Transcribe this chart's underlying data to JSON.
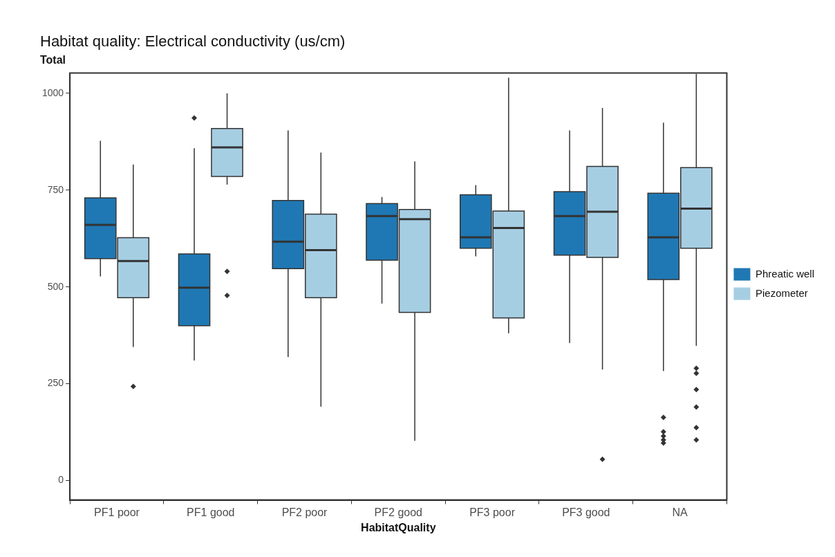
{
  "chart_data": {
    "type": "box",
    "title": "Habitat quality: Electrical conductivity (us/cm)",
    "subtitle": "Total",
    "xlabel": "HabitatQuality",
    "categories": [
      "PF1 poor",
      "PF1 good",
      "PF2 poor",
      "PF2 good",
      "PF3 poor",
      "PF3 good",
      "NA"
    ],
    "ylim": [
      -50,
      1052
    ],
    "yticks": [
      0,
      250,
      500,
      750,
      1000
    ],
    "grid": false,
    "legend": "right",
    "series": [
      {
        "name": "Phreatic well",
        "color": "#1f78b4",
        "boxes": [
          {
            "low": 527,
            "q1": 573,
            "median": 660,
            "q3": 730,
            "high": 877
          },
          {
            "low": 310,
            "q1": 400,
            "median": 498,
            "q3": 585,
            "high": 858,
            "outliers": [
              936
            ]
          },
          {
            "low": 319,
            "q1": 547,
            "median": 617,
            "q3": 723,
            "high": 904
          },
          {
            "low": 457,
            "q1": 569,
            "median": 683,
            "q3": 715,
            "high": 732
          },
          {
            "low": 579,
            "q1": 600,
            "median": 628,
            "q3": 738,
            "high": 763
          },
          {
            "low": 355,
            "q1": 582,
            "median": 683,
            "q3": 746,
            "high": 904
          },
          {
            "low": 283,
            "q1": 519,
            "median": 628,
            "q3": 742,
            "high": 924,
            "outliers": [
              163,
              126,
              115,
              105,
              97
            ]
          }
        ]
      },
      {
        "name": "Piezometer",
        "color": "#a6cee3",
        "boxes": [
          {
            "low": 345,
            "q1": 472,
            "median": 567,
            "q3": 627,
            "high": 816,
            "outliers": [
              243
            ]
          },
          {
            "low": 764,
            "q1": 785,
            "median": 860,
            "q3": 909,
            "high": 1000,
            "outliers": [
              540,
              478
            ]
          },
          {
            "low": 191,
            "q1": 472,
            "median": 595,
            "q3": 688,
            "high": 847
          },
          {
            "low": 103,
            "q1": 434,
            "median": 675,
            "q3": 700,
            "high": 824
          },
          {
            "low": 380,
            "q1": 420,
            "median": 652,
            "q3": 696,
            "high": 1040
          },
          {
            "low": 287,
            "q1": 576,
            "median": 694,
            "q3": 811,
            "high": 962,
            "outliers": [
              55
            ]
          },
          {
            "low": 348,
            "q1": 600,
            "median": 702,
            "q3": 808,
            "high": 1050,
            "outliers": [
              290,
              277,
              235,
              190,
              137,
              105
            ]
          }
        ]
      }
    ]
  }
}
